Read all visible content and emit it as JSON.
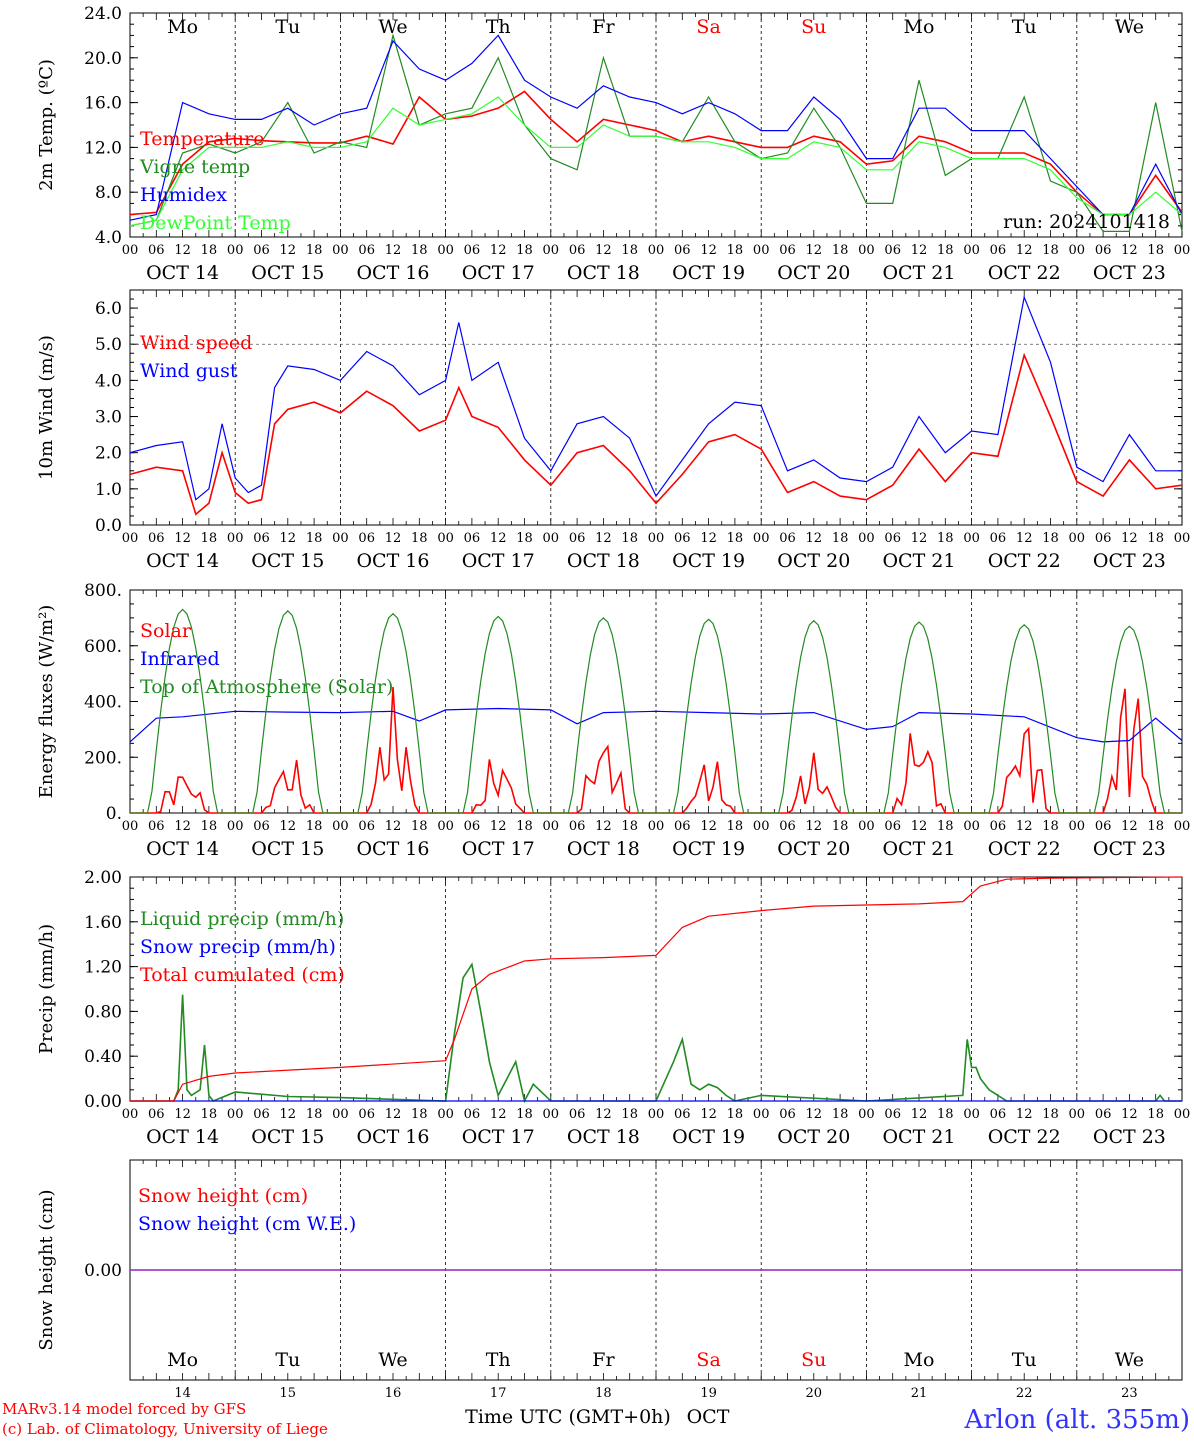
{
  "chart_data": [
    {
      "id": "temperature",
      "type": "line",
      "ylabel": "2m Temp. (ºC)",
      "ylim": [
        4,
        24
      ],
      "yticks": [
        4,
        8,
        12,
        16,
        20,
        24
      ],
      "ytick_labels": [
        "4.0",
        "8.0",
        "12.0",
        "16.0",
        "20.0",
        "24.0"
      ],
      "annotation": "run: 2024101418",
      "show_weekdays_top": true,
      "x": [
        0,
        12,
        24,
        36,
        48,
        60,
        72,
        84,
        96,
        108,
        120,
        132,
        144,
        156,
        168,
        180,
        192,
        204,
        216,
        228,
        240
      ],
      "series": [
        {
          "name": "Temperature",
          "color": "#ff0000",
          "x": [
            0,
            6,
            12,
            18,
            24,
            30,
            36,
            42,
            48,
            54,
            60,
            66,
            72,
            78,
            84,
            90,
            96,
            102,
            108,
            114,
            120,
            126,
            132,
            138,
            144,
            150,
            156,
            162,
            168,
            174,
            180,
            186,
            192,
            198,
            204,
            210,
            216,
            222,
            228,
            234,
            240
          ],
          "values": [
            6.0,
            6.2,
            10.5,
            12.5,
            12.8,
            12.6,
            12.5,
            12.4,
            12.4,
            13.0,
            12.3,
            16.5,
            14.5,
            14.8,
            15.5,
            17.0,
            14.5,
            12.5,
            14.5,
            14.0,
            13.5,
            12.5,
            13.0,
            12.5,
            12.0,
            12.0,
            13.0,
            12.5,
            10.5,
            10.8,
            13.0,
            12.5,
            11.5,
            11.5,
            11.5,
            10.5,
            8.0,
            6.0,
            6.0,
            9.5,
            6.2
          ]
        },
        {
          "name": "Vigne temp",
          "color": "#228b22",
          "x": [
            0,
            6,
            12,
            18,
            24,
            30,
            36,
            42,
            48,
            54,
            60,
            66,
            72,
            78,
            84,
            90,
            96,
            102,
            108,
            114,
            120,
            126,
            132,
            138,
            144,
            150,
            156,
            162,
            168,
            174,
            180,
            186,
            192,
            198,
            204,
            210,
            216,
            222,
            228,
            234,
            240
          ],
          "values": [
            5.0,
            5.5,
            11.5,
            12.3,
            11.5,
            12.5,
            16.0,
            11.5,
            12.5,
            12.0,
            22.0,
            14.0,
            15.0,
            15.5,
            20.0,
            14.0,
            11.0,
            10.0,
            20.0,
            13.0,
            13.0,
            12.5,
            16.5,
            12.5,
            11.0,
            11.5,
            15.5,
            12.0,
            7.0,
            7.0,
            18.0,
            9.5,
            11.0,
            11.0,
            16.5,
            9.0,
            8.0,
            4.5,
            4.5,
            16.0,
            4.5
          ]
        },
        {
          "name": "Humidex",
          "color": "#0000ff",
          "x": [
            0,
            6,
            12,
            18,
            24,
            30,
            36,
            42,
            48,
            54,
            60,
            66,
            72,
            78,
            84,
            90,
            96,
            102,
            108,
            114,
            120,
            126,
            132,
            138,
            144,
            150,
            156,
            162,
            168,
            174,
            180,
            186,
            192,
            198,
            204,
            210,
            216,
            222,
            228,
            234,
            240
          ],
          "values": [
            5.5,
            6.0,
            16.0,
            15.0,
            14.5,
            14.5,
            15.5,
            14.0,
            15.0,
            15.5,
            21.5,
            19.0,
            18.0,
            19.5,
            22.0,
            18.0,
            16.5,
            15.5,
            17.5,
            16.5,
            16.0,
            15.0,
            16.0,
            15.0,
            13.5,
            13.5,
            16.5,
            14.5,
            11.0,
            11.0,
            15.5,
            15.5,
            13.5,
            13.5,
            13.5,
            11.0,
            8.5,
            6.0,
            6.0,
            10.5,
            6.0
          ]
        },
        {
          "name": "DewPoint Temp",
          "color": "#33ff33",
          "x": [
            0,
            6,
            12,
            18,
            24,
            30,
            36,
            42,
            48,
            54,
            60,
            66,
            72,
            78,
            84,
            90,
            96,
            102,
            108,
            114,
            120,
            126,
            132,
            138,
            144,
            150,
            156,
            162,
            168,
            174,
            180,
            186,
            192,
            198,
            204,
            210,
            216,
            222,
            228,
            234,
            240
          ],
          "values": [
            5.0,
            5.5,
            10.0,
            12.0,
            12.0,
            12.0,
            12.5,
            12.0,
            12.0,
            12.5,
            15.5,
            14.0,
            14.5,
            15.0,
            16.5,
            14.0,
            12.0,
            12.0,
            14.0,
            13.0,
            13.0,
            12.5,
            12.5,
            12.0,
            11.0,
            11.0,
            12.5,
            12.0,
            10.0,
            10.0,
            12.5,
            12.0,
            11.0,
            11.0,
            11.0,
            10.0,
            7.5,
            6.0,
            6.0,
            8.0,
            6.0
          ]
        }
      ]
    },
    {
      "id": "wind",
      "type": "line",
      "ylabel": "10m Wind (m/s)",
      "ylim": [
        0,
        6.5
      ],
      "yticks": [
        0,
        1,
        2,
        3,
        4,
        5,
        6
      ],
      "ytick_labels": [
        "0.0",
        "1.0",
        "2.0",
        "3.0",
        "4.0",
        "5.0",
        "6.0"
      ],
      "dashed_ref": 5.0,
      "series": [
        {
          "name": "Wind speed",
          "color": "#ff0000",
          "x": [
            0,
            6,
            12,
            15,
            18,
            21,
            24,
            27,
            30,
            33,
            36,
            42,
            48,
            54,
            60,
            66,
            72,
            75,
            78,
            84,
            90,
            96,
            102,
            108,
            114,
            120,
            126,
            132,
            138,
            144,
            150,
            156,
            162,
            168,
            174,
            180,
            186,
            192,
            198,
            204,
            210,
            216,
            222,
            228,
            234,
            240
          ],
          "values": [
            1.4,
            1.6,
            1.5,
            0.3,
            0.6,
            2.0,
            0.9,
            0.6,
            0.7,
            2.8,
            3.2,
            3.4,
            3.1,
            3.7,
            3.3,
            2.6,
            2.9,
            3.8,
            3.0,
            2.7,
            1.8,
            1.1,
            2.0,
            2.2,
            1.5,
            0.6,
            1.4,
            2.3,
            2.5,
            2.1,
            0.9,
            1.2,
            0.8,
            0.7,
            1.1,
            2.1,
            1.2,
            2.0,
            1.9,
            4.7,
            3.0,
            1.2,
            0.8,
            1.8,
            1.0,
            1.1
          ]
        },
        {
          "name": "Wind gust",
          "color": "#0000ff",
          "x": [
            0,
            6,
            12,
            15,
            18,
            21,
            24,
            27,
            30,
            33,
            36,
            42,
            48,
            54,
            60,
            66,
            72,
            75,
            78,
            84,
            90,
            96,
            102,
            108,
            114,
            120,
            126,
            132,
            138,
            144,
            150,
            156,
            162,
            168,
            174,
            180,
            186,
            192,
            198,
            204,
            210,
            216,
            222,
            228,
            234,
            240
          ],
          "values": [
            2.0,
            2.2,
            2.3,
            0.7,
            1.0,
            2.8,
            1.3,
            0.9,
            1.1,
            3.8,
            4.4,
            4.3,
            4.0,
            4.8,
            4.4,
            3.6,
            4.0,
            5.6,
            4.0,
            4.5,
            2.4,
            1.5,
            2.8,
            3.0,
            2.4,
            0.8,
            1.8,
            2.8,
            3.4,
            3.3,
            1.5,
            1.8,
            1.3,
            1.2,
            1.6,
            3.0,
            2.0,
            2.6,
            2.5,
            6.3,
            4.5,
            1.6,
            1.2,
            2.5,
            1.5,
            1.5
          ]
        }
      ]
    },
    {
      "id": "energy",
      "type": "line",
      "ylabel": "Energy fluxes (W/m²)",
      "ylim": [
        0,
        800
      ],
      "yticks": [
        0,
        200,
        400,
        600,
        800
      ],
      "ytick_labels": [
        "0.",
        "200.",
        "400.",
        "600.",
        "800."
      ],
      "series": [
        {
          "name": "Solar",
          "color": "#ff0000",
          "peaks": [
            150,
            180,
            350,
            180,
            270,
            170,
            175,
            300,
            310,
            430
          ],
          "values_daily_peak": [
            150,
            180,
            350,
            180,
            270,
            170,
            175,
            300,
            310,
            430
          ]
        },
        {
          "name": "Infrared",
          "color": "#0000ff",
          "x": [
            0,
            6,
            12,
            24,
            36,
            48,
            60,
            66,
            72,
            84,
            96,
            102,
            108,
            120,
            132,
            144,
            156,
            168,
            174,
            180,
            192,
            204,
            216,
            222,
            228,
            234,
            240
          ],
          "values": [
            255,
            340,
            345,
            365,
            362,
            360,
            365,
            330,
            370,
            375,
            370,
            320,
            360,
            365,
            360,
            355,
            360,
            300,
            310,
            360,
            355,
            345,
            270,
            255,
            260,
            340,
            260
          ]
        },
        {
          "name": "Top of Atmosphere (Solar)",
          "color": "#228b22",
          "values_daily_peak": [
            730,
            725,
            715,
            705,
            700,
            695,
            690,
            685,
            675,
            670
          ]
        }
      ]
    },
    {
      "id": "precip",
      "type": "line",
      "ylabel": "Precip (mm/h)",
      "ylim": [
        0,
        2.0
      ],
      "yticks": [
        0,
        0.4,
        0.8,
        1.2,
        1.6,
        2.0
      ],
      "ytick_labels": [
        "0.00",
        "0.40",
        "0.80",
        "1.20",
        "1.60",
        "2.00"
      ],
      "series": [
        {
          "name": "Liquid precip (mm/h)",
          "color": "#228b22",
          "x": [
            0,
            10,
            11,
            12,
            13,
            14,
            16,
            17,
            18,
            19,
            24,
            36,
            48,
            72,
            74,
            76,
            78,
            80,
            82,
            84,
            86,
            88,
            90,
            92,
            96,
            120,
            124,
            126,
            128,
            130,
            132,
            134,
            136,
            138,
            144,
            168,
            190,
            191,
            192,
            193,
            194,
            196,
            198,
            200,
            220,
            228,
            234,
            235,
            236,
            240
          ],
          "values": [
            0,
            0,
            0.1,
            0.95,
            0.1,
            0.05,
            0.1,
            0.5,
            0.05,
            0.0,
            0.08,
            0.04,
            0.03,
            0.0,
            0.6,
            1.1,
            1.22,
            0.8,
            0.35,
            0.05,
            0.2,
            0.35,
            0.0,
            0.15,
            0.0,
            0.0,
            0.35,
            0.55,
            0.15,
            0.1,
            0.15,
            0.12,
            0.05,
            0.0,
            0.05,
            0.0,
            0.05,
            0.55,
            0.3,
            0.3,
            0.2,
            0.1,
            0.05,
            0.0,
            0.0,
            0.0,
            0.0,
            0.05,
            0.0,
            0.0
          ]
        },
        {
          "name": "Snow precip (mm/h)",
          "color": "#0000ff",
          "x": [
            0,
            240
          ],
          "values": [
            0,
            0
          ]
        },
        {
          "name": "Total cumulated (cm)",
          "color": "#ff0000",
          "x": [
            0,
            10,
            12,
            18,
            24,
            48,
            72,
            74,
            78,
            82,
            90,
            96,
            108,
            120,
            126,
            132,
            144,
            156,
            168,
            180,
            190,
            194,
            200,
            210,
            240
          ],
          "values": [
            0,
            0,
            0.15,
            0.22,
            0.25,
            0.3,
            0.36,
            0.55,
            1.0,
            1.13,
            1.25,
            1.27,
            1.28,
            1.3,
            1.55,
            1.65,
            1.7,
            1.74,
            1.75,
            1.76,
            1.78,
            1.92,
            1.98,
            1.99,
            2.0
          ]
        }
      ]
    },
    {
      "id": "snow",
      "type": "line",
      "ylabel": "Snow height (cm)",
      "ylim": [
        -1,
        1
      ],
      "yticks": [
        0
      ],
      "ytick_labels": [
        "0.00"
      ],
      "show_weekdays_bottom": true,
      "series": [
        {
          "name": "Snow height (cm)",
          "color": "#ff0000",
          "x": [
            0,
            240
          ],
          "values": [
            0,
            0
          ]
        },
        {
          "name": "Snow height (cm W.E.)",
          "color": "#0000ff",
          "x": [
            0,
            240
          ],
          "values": [
            0,
            0
          ]
        }
      ]
    }
  ],
  "weekdays": [
    "Mo",
    "Tu",
    "We",
    "Th",
    "Fr",
    "Sa",
    "Su",
    "Mo",
    "Tu",
    "We"
  ],
  "weekday_colors": [
    "#000000",
    "#000000",
    "#000000",
    "#000000",
    "#000000",
    "#ff0000",
    "#ff0000",
    "#000000",
    "#000000",
    "#000000"
  ],
  "date_labels": [
    "OCT 14",
    "OCT 15",
    "OCT 16",
    "OCT 17",
    "OCT 18",
    "OCT 19",
    "OCT 20",
    "OCT 21",
    "OCT 22",
    "OCT 23"
  ],
  "hour_labels": [
    "00",
    "06",
    "12",
    "18"
  ],
  "day_numbers": [
    "14",
    "15",
    "16",
    "17",
    "18",
    "19",
    "20",
    "21",
    "22",
    "23"
  ],
  "xlabel": "Time UTC (GMT+0h)",
  "month": "OCT",
  "footer": {
    "model_line": "MARv3.14 model forced by GFS",
    "credit_line": "(c) Lab. of Climatology, University of Liege",
    "station": "Arlon (alt. 355m)"
  },
  "colors": {
    "axis": "#000000",
    "red": "#ff0000",
    "blue": "#0000ff",
    "green": "#228b22",
    "lightgreen": "#33ff33",
    "purple": "#9933cc"
  }
}
